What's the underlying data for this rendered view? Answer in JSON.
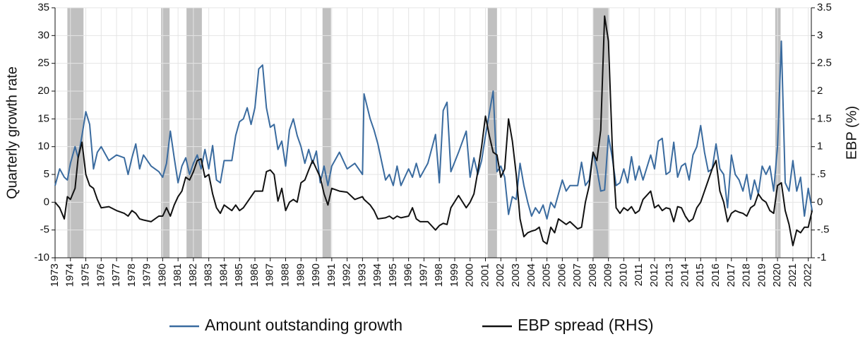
{
  "chart_data": {
    "type": "line",
    "y_label": "Quarterly growth rate",
    "y2_label": "EBP (%)",
    "x": [
      1973,
      1973.3,
      1973.6,
      1973.8,
      1974,
      1974.3,
      1974.5,
      1974.75,
      1975,
      1975.25,
      1975.5,
      1975.75,
      1976,
      1976.5,
      1977,
      1977.5,
      1977.75,
      1978,
      1978.25,
      1978.5,
      1978.75,
      1979.25,
      1979.75,
      1980,
      1980.25,
      1980.5,
      1980.75,
      1981,
      1981.25,
      1981.5,
      1981.75,
      1982,
      1982.25,
      1982.5,
      1982.75,
      1983,
      1983.25,
      1983.5,
      1983.75,
      1984,
      1984.5,
      1984.75,
      1985,
      1985.25,
      1985.5,
      1985.75,
      1986,
      1986.25,
      1986.5,
      1986.75,
      1987,
      1987.25,
      1987.5,
      1987.75,
      1988,
      1988.25,
      1988.5,
      1988.75,
      1989,
      1989.25,
      1989.5,
      1989.75,
      1990,
      1990.25,
      1990.5,
      1990.75,
      1991,
      1991.5,
      1992,
      1992.5,
      1993,
      1993.1,
      1993.5,
      1993.75,
      1994,
      1994.5,
      1994.75,
      1995,
      1995.25,
      1995.5,
      1996,
      1996.25,
      1996.5,
      1996.75,
      1997.25,
      1997.75,
      1998,
      1998.25,
      1998.5,
      1998.75,
      1999.25,
      1999.75,
      2000,
      2000.25,
      2000.5,
      2000.75,
      2001,
      2001.25,
      2001.5,
      2001.75,
      2002,
      2002.25,
      2002.5,
      2002.75,
      2003,
      2003.25,
      2003.5,
      2003.75,
      2004,
      2004.25,
      2004.5,
      2004.75,
      2005,
      2005.25,
      2005.5,
      2005.75,
      2006,
      2006.25,
      2006.5,
      2007,
      2007.25,
      2007.5,
      2007.75,
      2008,
      2008.25,
      2008.5,
      2008.75,
      2009,
      2009.25,
      2009.5,
      2009.75,
      2010,
      2010.25,
      2010.5,
      2010.75,
      2011,
      2011.25,
      2011.75,
      2012,
      2012.25,
      2012.5,
      2012.75,
      2013,
      2013.25,
      2013.5,
      2013.75,
      2014,
      2014.25,
      2014.5,
      2014.75,
      2015,
      2015.25,
      2015.5,
      2015.75,
      2016,
      2016.25,
      2016.5,
      2016.75,
      2017,
      2017.25,
      2017.5,
      2017.75,
      2018,
      2018.25,
      2018.5,
      2018.75,
      2019,
      2019.25,
      2019.5,
      2019.75,
      2020,
      2020.25,
      2020.5,
      2020.75,
      2021,
      2021.25,
      2021.5,
      2021.75,
      2022,
      2022.25
    ],
    "series": [
      {
        "name": "Amount outstanding growth",
        "color": "#3a6b9f",
        "values": [
          3,
          6,
          4.5,
          4,
          7,
          10,
          8,
          12,
          16.3,
          14,
          6,
          9,
          10,
          7.5,
          8.5,
          8,
          5,
          8,
          10.5,
          6,
          8.5,
          6.5,
          5.5,
          4.5,
          7,
          12.8,
          8,
          3.5,
          6.5,
          8,
          5,
          7,
          8.5,
          6,
          9.5,
          6,
          10.2,
          4,
          3.5,
          7.5,
          7.5,
          12,
          14.5,
          15,
          17,
          14,
          17,
          24,
          24.7,
          17,
          13.5,
          14,
          9.5,
          11,
          6.5,
          13,
          15,
          12,
          10,
          7,
          9.5,
          7,
          9.2,
          3.5,
          6.5,
          3,
          6.5,
          9,
          6,
          7,
          5,
          19.5,
          15,
          13,
          10.5,
          4,
          5,
          3,
          6.5,
          3,
          6,
          4.5,
          7,
          4.5,
          7,
          12.2,
          3.5,
          16.5,
          18,
          5.5,
          9,
          12.8,
          4.5,
          8,
          5,
          7.5,
          12,
          16,
          20,
          5.5,
          6.5,
          4.5,
          -2.2,
          1,
          0.5,
          7,
          3,
          0,
          -2.5,
          -1,
          -2,
          -0.5,
          -3,
          0,
          -1,
          1.5,
          4,
          2,
          3,
          3,
          7.2,
          3,
          4,
          9,
          6,
          2,
          2.2,
          12,
          8,
          3,
          3.5,
          6,
          3.5,
          8.2,
          4,
          6.5,
          4,
          8.5,
          6,
          11,
          11.5,
          5,
          5.5,
          10.8,
          4.5,
          6.5,
          7,
          4,
          8.5,
          10,
          13.8,
          9,
          5.5,
          6,
          10.5,
          6,
          5,
          -1,
          8.5,
          5,
          4,
          2,
          5,
          0.5,
          4,
          1.5,
          6.5,
          5,
          6.5,
          2,
          10,
          29,
          3.5,
          2,
          7.5,
          2,
          4.5,
          -2.5,
          2.5,
          -1.5
        ]
      },
      {
        "name": "EBP spread (RHS)",
        "color": "#111111",
        "axis": "y2",
        "values": [
          0,
          -0.1,
          -0.3,
          0.1,
          0.05,
          0.25,
          0.8,
          1.08,
          0.5,
          0.3,
          0.25,
          0.05,
          -0.1,
          -0.08,
          -0.15,
          -0.2,
          -0.25,
          -0.15,
          -0.2,
          -0.3,
          -0.32,
          -0.35,
          -0.25,
          -0.25,
          -0.1,
          -0.25,
          -0.05,
          0.1,
          0.2,
          0.45,
          0.4,
          0.55,
          0.75,
          0.78,
          0.45,
          0.5,
          0.15,
          -0.1,
          -0.2,
          -0.05,
          -0.15,
          -0.05,
          -0.15,
          -0.1,
          0,
          0.1,
          0.2,
          0.2,
          0.2,
          0.55,
          0.58,
          0.5,
          0.02,
          0.25,
          -0.15,
          0,
          0.05,
          0,
          0.35,
          0.4,
          0.58,
          0.75,
          0.6,
          0.45,
          0.15,
          -0.05,
          0.25,
          0.2,
          0.18,
          0.05,
          0.1,
          0.05,
          -0.05,
          -0.15,
          -0.3,
          -0.28,
          -0.25,
          -0.3,
          -0.25,
          -0.28,
          -0.25,
          -0.1,
          -0.3,
          -0.35,
          -0.35,
          -0.5,
          -0.42,
          -0.38,
          -0.4,
          -0.1,
          0.12,
          -0.1,
          0,
          0.15,
          0.55,
          1,
          1.55,
          1.2,
          0.9,
          0.85,
          0.45,
          0.6,
          1.5,
          1.1,
          0.5,
          -0.3,
          -0.62,
          -0.55,
          -0.52,
          -0.5,
          -0.45,
          -0.7,
          -0.75,
          -0.45,
          -0.55,
          -0.3,
          -0.35,
          -0.4,
          -0.35,
          -0.48,
          -0.45,
          0,
          0.3,
          0.9,
          0.75,
          1.3,
          3.35,
          2.9,
          1,
          -0.1,
          -0.2,
          -0.1,
          -0.15,
          -0.08,
          -0.2,
          -0.15,
          0.05,
          0.2,
          -0.1,
          -0.05,
          -0.15,
          -0.1,
          -0.12,
          -0.35,
          -0.08,
          -0.1,
          -0.25,
          -0.35,
          -0.3,
          -0.1,
          0,
          0.2,
          0.4,
          0.6,
          0.75,
          0.2,
          0,
          -0.35,
          -0.2,
          -0.15,
          -0.18,
          -0.2,
          -0.25,
          -0.1,
          -0.05,
          0.15,
          0.05,
          0,
          -0.15,
          -0.2,
          0.3,
          0.35,
          -0.15,
          -0.4,
          -0.78,
          -0.5,
          -0.55,
          -0.45,
          -0.45,
          -0.15
        ]
      }
    ],
    "recessions": [
      [
        1973.8,
        1974.85
      ],
      [
        1979.9,
        1980.45
      ],
      [
        1981.55,
        1982.55
      ],
      [
        1990.4,
        1990.95
      ],
      [
        2001.15,
        2001.75
      ],
      [
        2008.0,
        2009.05
      ],
      [
        2019.85,
        2020.2
      ]
    ],
    "recession_color": "#c0c0c0",
    "xlim": [
      1973,
      2022.2
    ],
    "xticks": [
      1973,
      1974,
      1975,
      1976,
      1977,
      1978,
      1979,
      1980,
      1981,
      1982,
      1983,
      1984,
      1985,
      1986,
      1987,
      1988,
      1989,
      1990,
      1991,
      1992,
      1993,
      1994,
      1995,
      1996,
      1997,
      1998,
      1999,
      2000,
      2001,
      2002,
      2003,
      2004,
      2005,
      2006,
      2007,
      2008,
      2009,
      2010,
      2011,
      2012,
      2013,
      2014,
      2015,
      2016,
      2017,
      2018,
      2019,
      2020,
      2021,
      2022
    ],
    "ylim": [
      -10,
      35
    ],
    "yticks": [
      -10,
      -5,
      0,
      5,
      10,
      15,
      20,
      25,
      30,
      35
    ],
    "y2lim": [
      -1,
      3.5
    ],
    "y2ticks": [
      -1,
      {
        "value": -0.5,
        "label": "-.5"
      },
      0,
      {
        "value": 0.5,
        "label": ".5"
      },
      1,
      1.5,
      2,
      2.5,
      3,
      3.5
    ],
    "grid": true
  }
}
